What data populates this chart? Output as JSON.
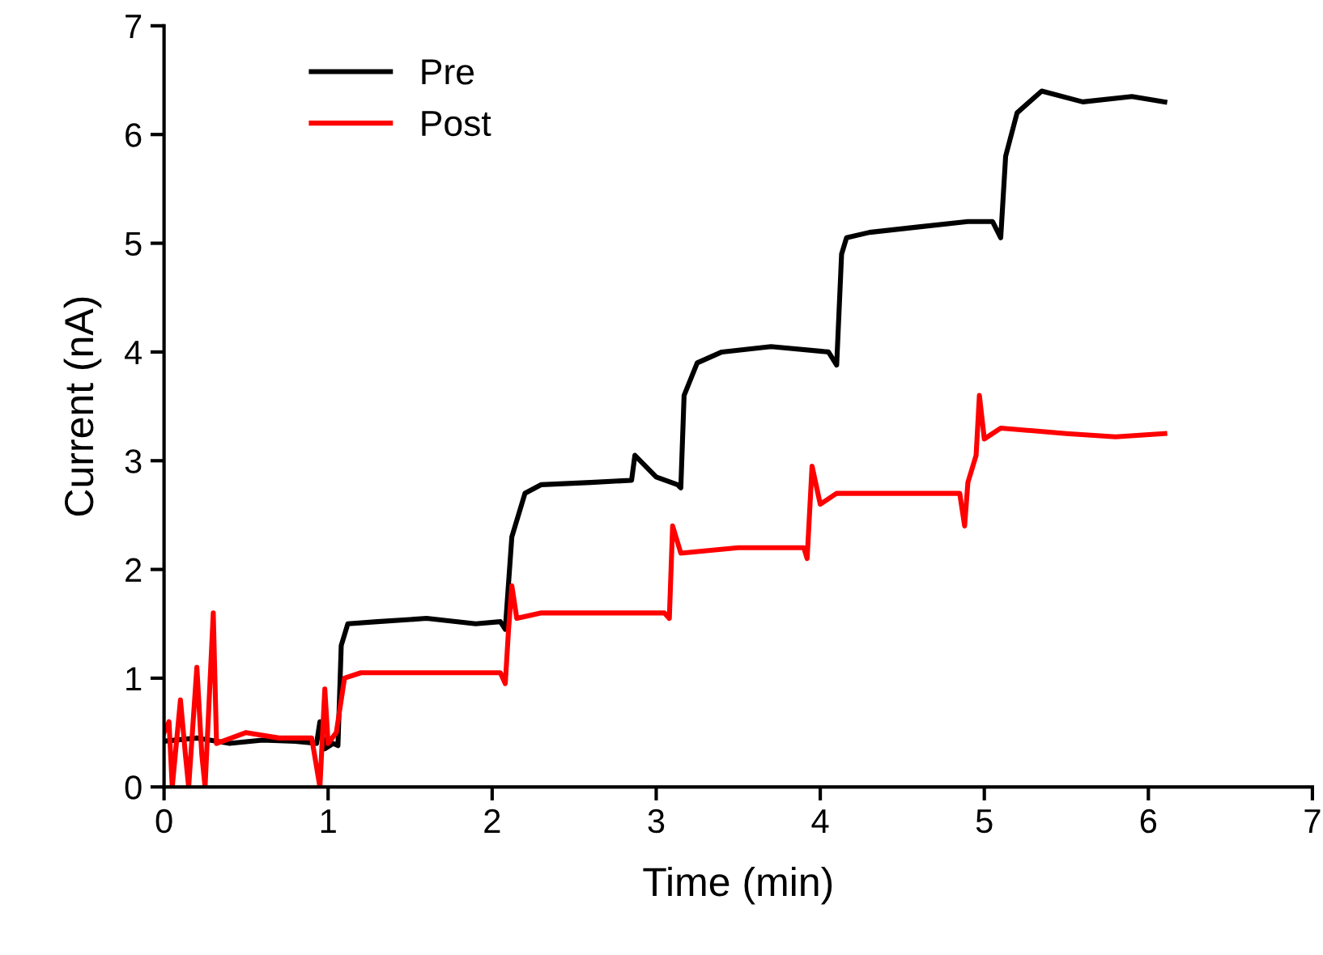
{
  "chart_data": {
    "type": "line",
    "xlabel": "Time (min)",
    "ylabel": "Current (nA)",
    "xlim": [
      0,
      7
    ],
    "ylim": [
      0,
      7
    ],
    "xticks": [
      0,
      1,
      2,
      3,
      4,
      5,
      6,
      7
    ],
    "yticks": [
      0,
      1,
      2,
      3,
      4,
      5,
      6,
      7
    ],
    "grid": false,
    "legend": "top left",
    "marker": "none",
    "line_style": "solid",
    "series": [
      {
        "name": "Pre",
        "color": "#000000",
        "x": [
          0,
          0.2,
          0.4,
          0.6,
          0.8,
          0.93,
          0.95,
          0.98,
          1.03,
          1.06,
          1.08,
          1.12,
          1.3,
          1.6,
          1.9,
          2.05,
          2.08,
          2.12,
          2.2,
          2.3,
          2.6,
          2.85,
          2.87,
          3.0,
          3.13,
          3.15,
          3.17,
          3.25,
          3.4,
          3.7,
          4.05,
          4.1,
          4.13,
          4.16,
          4.3,
          4.6,
          4.9,
          5.05,
          5.1,
          5.13,
          5.2,
          5.35,
          5.6,
          5.9,
          6.1
        ],
        "values": [
          0.42,
          0.45,
          0.4,
          0.43,
          0.42,
          0.4,
          0.6,
          0.35,
          0.4,
          0.38,
          1.3,
          1.5,
          1.52,
          1.55,
          1.5,
          1.52,
          1.45,
          2.3,
          2.7,
          2.78,
          2.8,
          2.82,
          3.05,
          2.85,
          2.78,
          2.75,
          3.6,
          3.9,
          4.0,
          4.05,
          4.0,
          3.88,
          4.9,
          5.05,
          5.1,
          5.15,
          5.2,
          5.2,
          5.05,
          5.8,
          6.2,
          6.4,
          6.3,
          6.35,
          6.3
        ]
      },
      {
        "name": "Post",
        "color": "#ff0000",
        "x": [
          0,
          0.03,
          0.05,
          0.1,
          0.13,
          0.15,
          0.2,
          0.23,
          0.25,
          0.3,
          0.32,
          0.5,
          0.7,
          0.9,
          0.95,
          0.98,
          1.0,
          1.05,
          1.1,
          1.2,
          1.6,
          2.05,
          2.08,
          2.1,
          2.12,
          2.15,
          2.3,
          2.7,
          3.05,
          3.08,
          3.1,
          3.15,
          3.5,
          3.9,
          3.92,
          3.95,
          4.0,
          4.1,
          4.5,
          4.85,
          4.88,
          4.9,
          4.95,
          4.97,
          5.0,
          5.1,
          5.5,
          5.8,
          6.1
        ],
        "values": [
          0.5,
          0.6,
          0.0,
          0.8,
          0.3,
          0.0,
          1.1,
          0.3,
          0.0,
          1.6,
          0.4,
          0.5,
          0.45,
          0.45,
          0.0,
          0.9,
          0.4,
          0.5,
          1.0,
          1.05,
          1.05,
          1.05,
          0.95,
          1.45,
          1.85,
          1.55,
          1.6,
          1.6,
          1.6,
          1.55,
          2.4,
          2.15,
          2.2,
          2.2,
          2.1,
          2.95,
          2.6,
          2.7,
          2.7,
          2.7,
          2.4,
          2.8,
          3.05,
          3.6,
          3.2,
          3.3,
          3.25,
          3.22,
          3.25
        ]
      }
    ]
  }
}
